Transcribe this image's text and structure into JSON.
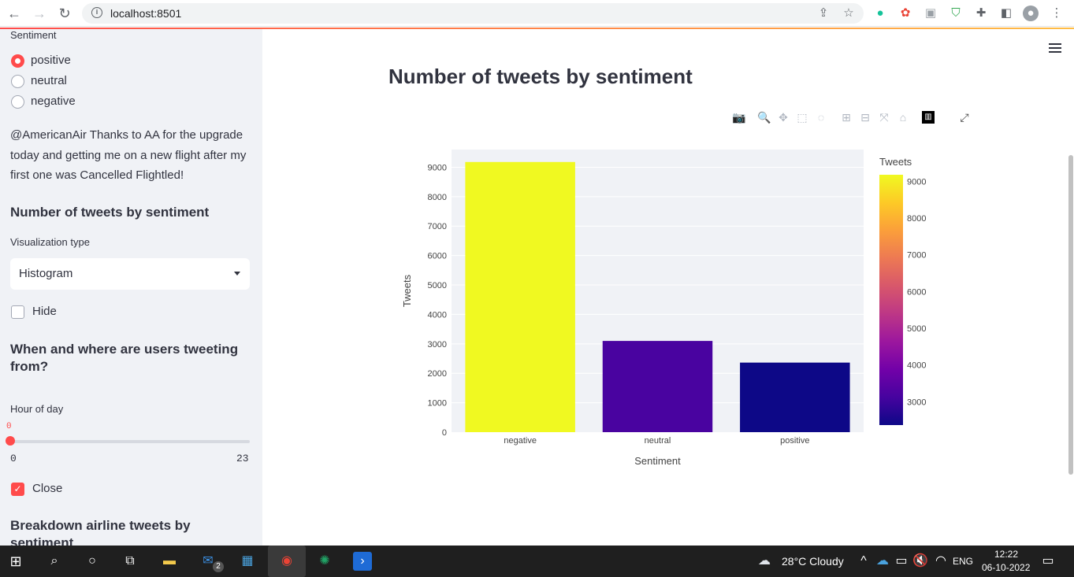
{
  "browser": {
    "url": "localhost:8501",
    "back": "←",
    "forward": "→",
    "reload": "↻"
  },
  "sidebar": {
    "sentiment_label": "Sentiment",
    "radio_options": [
      "positive",
      "neutral",
      "negative"
    ],
    "radio_selected": "positive",
    "tweet": "@AmericanAir Thanks to AA for the upgrade today and getting me on a new flight after my first one was Cancelled Flightled!",
    "section1_title": "Number of tweets by sentiment",
    "viz_label": "Visualization type",
    "viz_value": "Histogram",
    "hide_label": "Hide",
    "hide_checked": false,
    "section2_title": "When and where are users tweeting from?",
    "hour_label": "Hour of day",
    "hour_value": "0",
    "hour_min": "0",
    "hour_max": "23",
    "close_label": "Close",
    "close_checked": true,
    "section3_title": "Breakdown airline tweets by sentiment"
  },
  "main": {
    "title": "Number of tweets by sentiment",
    "modebar_icons": [
      "camera-icon",
      "zoom-icon",
      "pan-icon",
      "box-select-icon",
      "lasso-icon",
      "zoom-in-icon",
      "zoom-out-icon",
      "autoscale-icon",
      "reset-axes-icon",
      "plotly-logo-icon"
    ],
    "fullscreen_icon": "expand-icon"
  },
  "chart_data": {
    "type": "bar",
    "categories": [
      "negative",
      "neutral",
      "positive"
    ],
    "values": [
      9178,
      3099,
      2363
    ],
    "xlabel": "Sentiment",
    "ylabel": "Tweets",
    "ylim": [
      0,
      9600
    ],
    "yticks": [
      0,
      1000,
      2000,
      3000,
      4000,
      5000,
      6000,
      7000,
      8000,
      9000
    ],
    "colorbar": {
      "title": "Tweets",
      "ticks": [
        3000,
        4000,
        5000,
        6000,
        7000,
        8000,
        9000
      ],
      "range": [
        2363,
        9178
      ]
    },
    "colors": {
      "negative": "#f0f921",
      "neutral": "#4903a0",
      "positive": "#0d0887"
    }
  },
  "taskbar": {
    "weather": "28°C  Cloudy",
    "lang": "ENG",
    "time": "12:22",
    "date": "06-10-2022",
    "mail_badge": "2"
  }
}
